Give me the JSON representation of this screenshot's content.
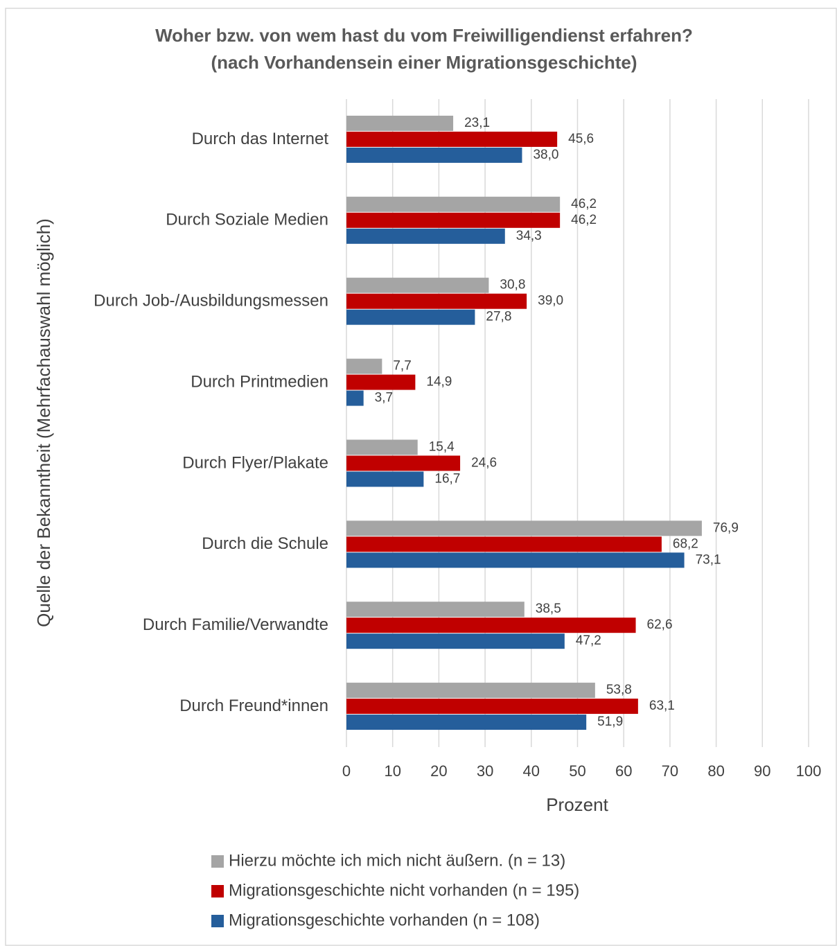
{
  "chart_data": {
    "type": "hbar",
    "title": "Woher bzw. von wem hast du vom Freiwilligendienst erfahren?",
    "subtitle": "(nach Vorhandensein einer Migrationsgeschichte)",
    "y_label": "Quelle der Bekanntheit (Mehrfachauswahl möglich)",
    "x_label": "Prozent",
    "categories": [
      "Durch das Internet",
      "Durch Soziale Medien",
      "Durch Job-/Ausbildungsmessen",
      "Durch Printmedien",
      "Durch Flyer/Plakate",
      "Durch die Schule",
      "Durch Familie/Verwandte",
      "Durch Freund*innen"
    ],
    "series": [
      {
        "name": "Hierzu möchte ich mich nicht äußern. (n = 13)",
        "color": "#a5a5a5",
        "values": [
          23.1,
          46.2,
          30.8,
          7.7,
          15.4,
          76.9,
          38.5,
          53.8
        ],
        "value_labels": [
          "23,1",
          "46,2",
          "30,8",
          "7,7",
          "15,4",
          "76,9",
          "38,5",
          "53,8"
        ]
      },
      {
        "name": "Migrationsgeschichte nicht vorhanden (n = 195)",
        "color": "#c00000",
        "values": [
          45.6,
          46.2,
          39.0,
          14.9,
          24.6,
          68.2,
          62.6,
          63.1
        ],
        "value_labels": [
          "45,6",
          "46,2",
          "39,0",
          "14,9",
          "24,6",
          "68,2",
          "62,6",
          "63,1"
        ]
      },
      {
        "name": "Migrationsgeschichte vorhanden (n = 108)",
        "color": "#255e9b",
        "values": [
          38.0,
          34.3,
          27.8,
          3.7,
          16.7,
          73.1,
          47.2,
          51.9
        ],
        "value_labels": [
          "38,0",
          "34,3",
          "27,8",
          "3,7",
          "16,7",
          "73,1",
          "47,2",
          "51,9"
        ]
      }
    ],
    "xlim": [
      0,
      100
    ],
    "xticks": [
      0,
      10,
      20,
      30,
      40,
      50,
      60,
      70,
      80,
      90,
      100
    ],
    "grid": true
  }
}
